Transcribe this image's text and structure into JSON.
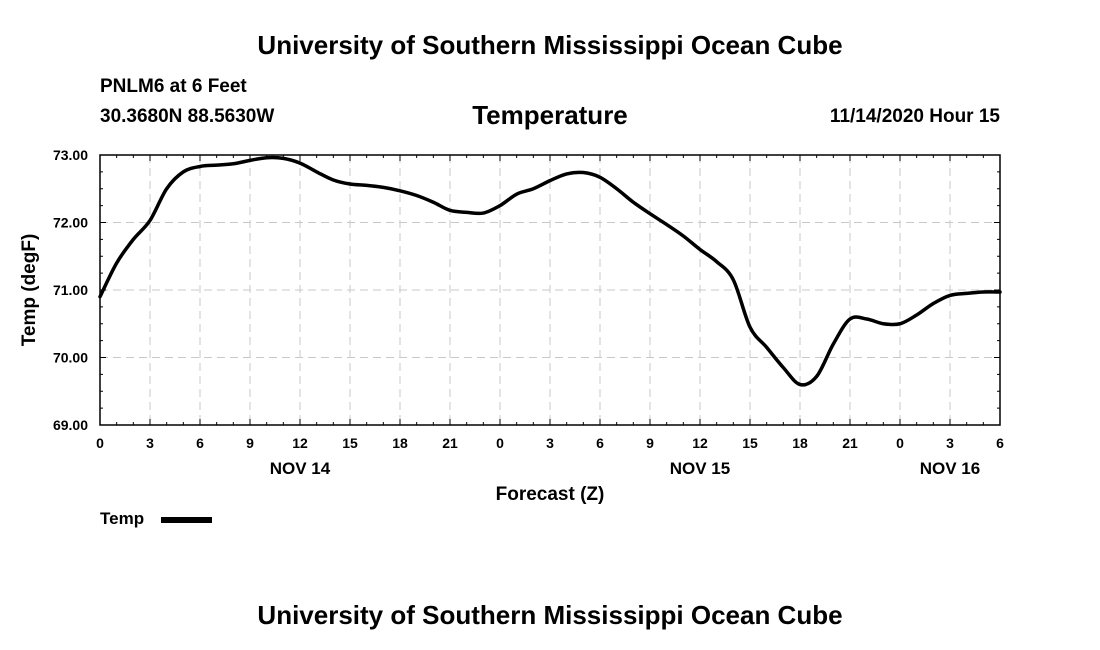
{
  "header": {
    "title_top": "University of Southern Mississippi Ocean Cube",
    "station": "PNLM6 at 6 Feet",
    "coords": "30.3680N 88.5630W",
    "chart_title": "Temperature",
    "datetime": "11/14/2020 Hour 15"
  },
  "footer": {
    "title_bottom": "University of Southern Mississippi Ocean Cube"
  },
  "legend": {
    "label": "Temp"
  },
  "chart_data": {
    "type": "line",
    "title": "Temperature",
    "xlabel": "Forecast (Z)",
    "ylabel": "Temp (degF)",
    "xlim": [
      0,
      54
    ],
    "ylim": [
      69.0,
      73.0
    ],
    "grid": true,
    "legend": "bottom-left",
    "yticks": [
      69.0,
      70.0,
      71.0,
      72.0,
      73.0
    ],
    "ytick_labels": [
      "69.00",
      "70.00",
      "71.00",
      "72.00",
      "73.00"
    ],
    "xticks": [
      0,
      3,
      6,
      9,
      12,
      15,
      18,
      21,
      24,
      27,
      30,
      33,
      36,
      39,
      42,
      45,
      48,
      51,
      54
    ],
    "xtick_labels": [
      "0",
      "3",
      "6",
      "9",
      "12",
      "15",
      "18",
      "21",
      "0",
      "3",
      "6",
      "9",
      "12",
      "15",
      "18",
      "21",
      "0",
      "3",
      "6"
    ],
    "date_labels": [
      {
        "x": 12,
        "label": "NOV 14"
      },
      {
        "x": 36,
        "label": "NOV 15"
      },
      {
        "x": 51,
        "label": "NOV 16"
      }
    ],
    "series": [
      {
        "name": "Temp",
        "color": "#000000",
        "x": [
          0,
          1,
          2,
          3,
          4,
          5,
          6,
          7,
          8,
          9,
          10,
          11,
          12,
          13,
          14,
          15,
          16,
          17,
          18,
          19,
          20,
          21,
          22,
          23,
          24,
          25,
          26,
          27,
          28,
          29,
          30,
          31,
          32,
          33,
          34,
          35,
          36,
          37,
          38,
          39,
          40,
          41,
          42,
          43,
          44,
          45,
          46,
          47,
          48,
          49,
          50,
          51,
          52,
          53,
          54
        ],
        "values": [
          70.9,
          71.4,
          71.75,
          72.03,
          72.5,
          72.75,
          72.83,
          72.85,
          72.87,
          72.92,
          72.96,
          72.95,
          72.88,
          72.75,
          72.63,
          72.57,
          72.55,
          72.52,
          72.47,
          72.4,
          72.3,
          72.18,
          72.15,
          72.14,
          72.25,
          72.42,
          72.5,
          72.62,
          72.72,
          72.74,
          72.67,
          72.5,
          72.3,
          72.13,
          71.97,
          71.8,
          71.6,
          71.42,
          71.15,
          70.45,
          70.15,
          69.85,
          69.6,
          69.72,
          70.2,
          70.57,
          70.57,
          70.5,
          70.5,
          70.63,
          70.8,
          70.92,
          70.95,
          70.97,
          70.97
        ]
      }
    ]
  }
}
